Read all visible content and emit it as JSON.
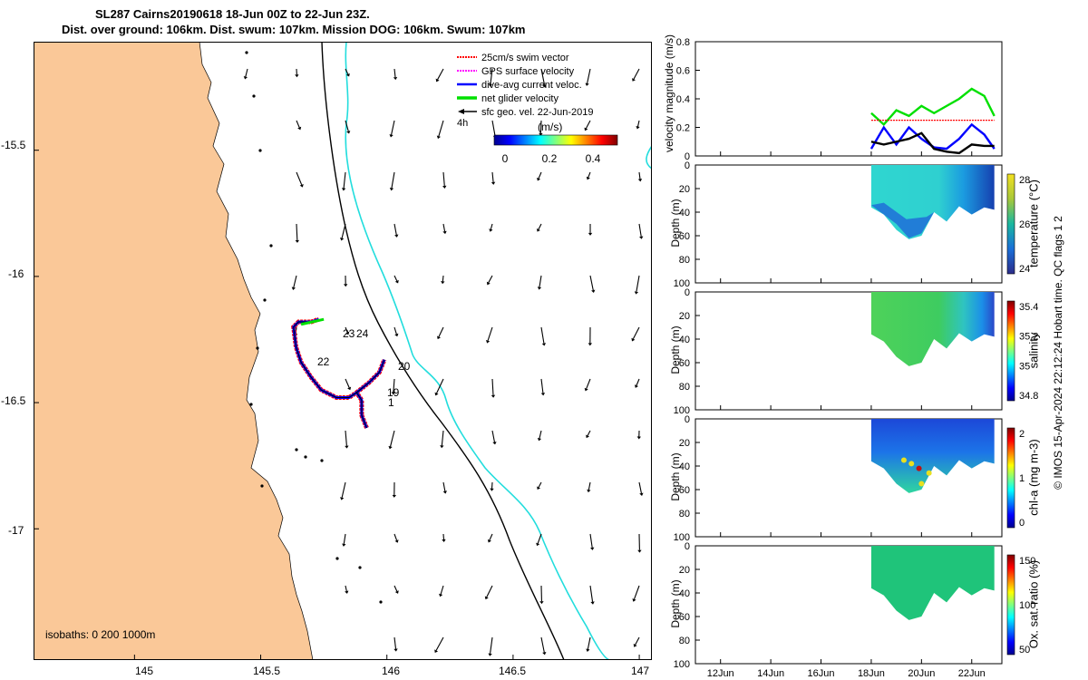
{
  "title": {
    "line1": "SL287 Cairns20190618 18-Jun 00Z to 22-Jun 23Z.",
    "line2": "Dist. over ground: 106km. Dist. swum: 107km. Mission DOG: 106km. Swum: 107km"
  },
  "map": {
    "x_ticks": [
      "145",
      "145.5",
      "146",
      "146.5",
      "147"
    ],
    "y_ticks": [
      "-15.5",
      "-16",
      "-16.5",
      "-17"
    ],
    "legend": [
      {
        "label": "25cm/s swim vector",
        "color": "#ff0000"
      },
      {
        "label": "GPS surface velocity",
        "color": "#ff00ff"
      },
      {
        "label": "dive-avg current veloc.",
        "color": "#0000ff"
      },
      {
        "label": "net glider velocity",
        "color": "#00e000"
      },
      {
        "label": "sfc geo. vel. 22-Jun-2019",
        "color": "#000000"
      }
    ],
    "time_label": "4h",
    "colorbar_label": "(m/s)",
    "colorbar_ticks": [
      "0",
      "0.2",
      "0.4"
    ],
    "day_labels": [
      "23",
      "24",
      "22",
      "20",
      "19",
      "1"
    ],
    "isobaths_label": "isobaths: 0   200  1000m",
    "land_color": "#fac898",
    "isobath_colors": {
      "200m": "#000000",
      "1000m": "#22dddd"
    }
  },
  "timeseries": {
    "x_ticks": [
      "12Jun",
      "14Jun",
      "16Jun",
      "18Jun",
      "20Jun",
      "22Jun"
    ],
    "velocity_panel": {
      "ylabel": "velocity magnitude (m/s)",
      "y_ticks": [
        "0",
        "0.2",
        "0.4",
        "0.6",
        "0.8"
      ]
    },
    "depth_panels": [
      {
        "name": "temperature",
        "ylabel": "Depth (m)",
        "cbar_label": "temperature (°C)",
        "cbar_ticks": [
          "28",
          "26",
          "24"
        ]
      },
      {
        "name": "salinity",
        "ylabel": "Depth (m)",
        "cbar_label": "salinity",
        "cbar_ticks": [
          "35.4",
          "35.2",
          "35",
          "34.8"
        ]
      },
      {
        "name": "chl-a",
        "ylabel": "Depth (m)",
        "cbar_label": "chl-a (mg m-3)",
        "cbar_ticks": [
          "2",
          "1",
          "0"
        ]
      },
      {
        "name": "oxygen",
        "ylabel": "Depth (m)",
        "cbar_label": "Ox. sat. ratio (%)",
        "cbar_ticks": [
          "150",
          "100",
          "50"
        ]
      }
    ],
    "depth_ticks": [
      "0",
      "20",
      "40",
      "60",
      "80",
      "100"
    ]
  },
  "credit": "© IMOS 15-Apr-2024 22:12:24 Hobart time. QC flags 1  2",
  "chart_data": [
    {
      "type": "scatter",
      "title": "SL287 Cairns20190618 18-Jun 00Z to 22-Jun 23Z.",
      "xlim": [
        144.6,
        147.05
      ],
      "ylim": [
        -17.52,
        -15.07
      ],
      "glider_track": {
        "lon": [
          145.92,
          145.9,
          145.9,
          145.88,
          145.85,
          145.8,
          145.74,
          145.7,
          145.66,
          145.64,
          145.63,
          145.65,
          145.7,
          145.73
        ],
        "lat": [
          -16.6,
          -16.55,
          -16.49,
          -16.46,
          -16.48,
          -16.48,
          -16.45,
          -16.4,
          -16.34,
          -16.28,
          -16.2,
          -16.18,
          -16.18,
          -16.17
        ]
      },
      "track_east_leg": {
        "lon": [
          145.88,
          145.93,
          145.97,
          145.99
        ],
        "lat": [
          -16.46,
          -16.42,
          -16.38,
          -16.33
        ]
      }
    },
    {
      "type": "line",
      "ylabel": "velocity magnitude (m/s)",
      "ylim": [
        0,
        0.8
      ],
      "x_day": [
        18.0,
        18.5,
        19.0,
        19.5,
        20.0,
        20.5,
        21.0,
        21.5,
        22.0,
        22.5,
        22.9
      ],
      "series": [
        {
          "color": "#00e000",
          "values": [
            0.3,
            0.22,
            0.32,
            0.28,
            0.35,
            0.3,
            0.35,
            0.4,
            0.47,
            0.42,
            0.28
          ]
        },
        {
          "color": "#0000ff",
          "values": [
            0.05,
            0.2,
            0.08,
            0.2,
            0.12,
            0.06,
            0.05,
            0.12,
            0.22,
            0.15,
            0.05
          ]
        },
        {
          "color": "#000000",
          "values": [
            0.1,
            0.08,
            0.1,
            0.12,
            0.16,
            0.05,
            0.03,
            0.02,
            0.08,
            0.07,
            0.07
          ]
        },
        {
          "color": "#ff0000",
          "values": [
            0.25,
            0.25,
            0.25,
            0.25,
            0.25,
            0.25,
            0.25,
            0.25,
            0.25,
            0.25,
            0.25
          ]
        }
      ]
    },
    {
      "type": "heatmap",
      "name": "temperature",
      "x_day": [
        18.0,
        18.5,
        19.0,
        19.5,
        20.0,
        20.5,
        21.0,
        21.5,
        22.0,
        22.5,
        22.9
      ],
      "max_depth": [
        36,
        42,
        55,
        63,
        60,
        40,
        48,
        35,
        42,
        36,
        38
      ],
      "ylim": [
        100,
        0
      ],
      "clim": [
        23,
        28.5
      ]
    },
    {
      "type": "heatmap",
      "name": "salinity",
      "x_day": [
        18.0,
        18.5,
        19.0,
        19.5,
        20.0,
        20.5,
        21.0,
        21.5,
        22.0,
        22.5,
        22.9
      ],
      "max_depth": [
        36,
        42,
        55,
        63,
        60,
        40,
        48,
        35,
        42,
        36,
        38
      ],
      "ylim": [
        100,
        0
      ],
      "clim": [
        34.75,
        35.45
      ]
    },
    {
      "type": "heatmap",
      "name": "chl-a",
      "x_day": [
        18.0,
        18.5,
        19.0,
        19.5,
        20.0,
        20.5,
        21.0,
        21.5,
        22.0,
        22.5,
        22.9
      ],
      "max_depth": [
        36,
        42,
        55,
        63,
        60,
        40,
        48,
        35,
        42,
        36,
        38
      ],
      "ylim": [
        100,
        0
      ],
      "clim": [
        0,
        2
      ]
    },
    {
      "type": "heatmap",
      "name": "oxygen",
      "x_day": [
        18.0,
        18.5,
        19.0,
        19.5,
        20.0,
        20.5,
        21.0,
        21.5,
        22.0,
        22.5,
        22.9
      ],
      "max_depth": [
        36,
        42,
        55,
        63,
        60,
        40,
        48,
        35,
        42,
        36,
        38
      ],
      "ylim": [
        100,
        0
      ],
      "clim": [
        25,
        175
      ]
    }
  ]
}
